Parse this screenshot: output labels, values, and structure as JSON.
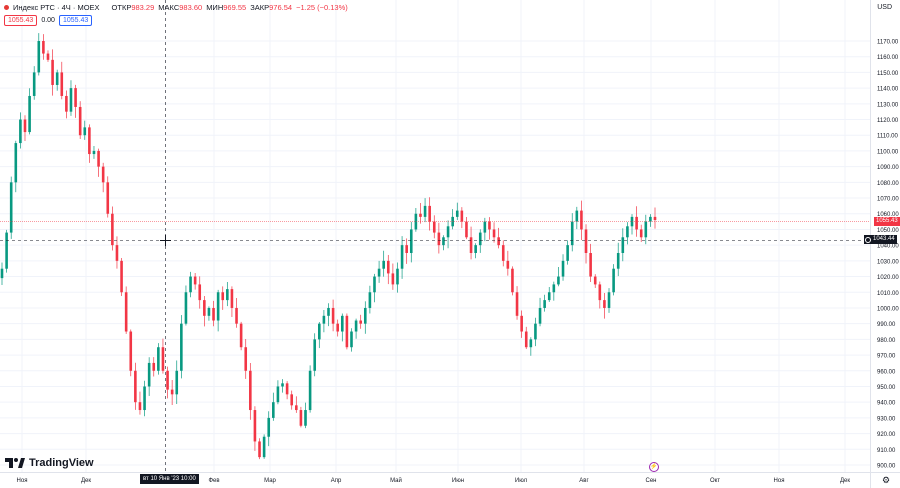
{
  "legend": {
    "title": "Индекс РТС · 4Ч · MOEX",
    "open_label": "ОТКР",
    "open_value": "983.29",
    "high_label": "МАКС",
    "high_value": "983.60",
    "low_label": "МИН",
    "low_value": "969.55",
    "close_label": "ЗАКР",
    "close_value": "976.54",
    "change": "−1.25 (−0.13%)"
  },
  "price_boxes": {
    "left": "1055.43",
    "mid": "0.00",
    "right": "1055.43"
  },
  "currency": "USD",
  "logo_text": "TradingView",
  "crosshair": {
    "date_label": "вт 10 Янв '23 10:00",
    "price_label": "1043.44"
  },
  "last_price_label": "1055.43",
  "icons": {
    "lightning": "lightning-icon",
    "settings": "gear-icon",
    "crosshair": "crosshair-icon"
  },
  "colors": {
    "up": "#089981",
    "down": "#f23645",
    "accent": "#2962ff"
  },
  "chart_data": {
    "type": "candlestick",
    "title": "Индекс РТС · 4Ч · MOEX",
    "y_ticks": [
      900,
      910,
      920,
      930,
      940,
      950,
      960,
      970,
      980,
      990,
      1000,
      1010,
      1020,
      1030,
      1040,
      1050,
      1060,
      1070,
      1080,
      1090,
      1100,
      1110,
      1120,
      1130,
      1140,
      1150,
      1160,
      1170
    ],
    "y_tick_labels": [
      "900.00",
      "910.00",
      "920.00",
      "930.00",
      "940.00",
      "950.00",
      "960.00",
      "970.00",
      "980.00",
      "990.00",
      "1000.00",
      "1010.00",
      "1020.00",
      "1030.00",
      "1040.00",
      "1050.00",
      "1060.00",
      "1070.00",
      "1080.00",
      "1090.00",
      "1100.00",
      "1110.00",
      "1120.00",
      "1130.00",
      "1140.00",
      "1150.00",
      "1160.00",
      "1170.00"
    ],
    "ylim": [
      897,
      1185
    ],
    "x_ticks": [
      "Ноя",
      "Дек",
      "Фев",
      "Мар",
      "Апр",
      "Май",
      "Июн",
      "Июл",
      "Авг",
      "Сен",
      "Окт",
      "Ноя",
      "Дек"
    ],
    "grid": true,
    "series": [
      {
        "values": [
          1025,
          1048,
          1080,
          1105,
          1120,
          1112,
          1135,
          1150,
          1170,
          1162,
          1158,
          1142,
          1150,
          1135,
          1125,
          1140,
          1128,
          1110,
          1115,
          1098,
          1100,
          1090,
          1080,
          1060,
          1040,
          1030,
          1010,
          985,
          960,
          940,
          935,
          950,
          965,
          960,
          975,
          960,
          948,
          945,
          960,
          990,
          1010,
          1020,
          1015,
          1005,
          995,
          1000,
          992,
          1010,
          1005,
          1012,
          1000,
          990,
          975,
          960,
          935,
          915,
          905,
          918,
          930,
          940,
          950,
          952,
          945,
          938,
          935,
          925,
          935,
          960,
          980,
          990,
          995,
          1000,
          990,
          985,
          995,
          975,
          985,
          992,
          990,
          1000,
          1010,
          1020,
          1025,
          1030,
          1022,
          1015,
          1025,
          1040,
          1035,
          1050,
          1060,
          1058,
          1065,
          1055,
          1048,
          1040,
          1045,
          1052,
          1058,
          1062,
          1055,
          1045,
          1035,
          1040,
          1048,
          1055,
          1050,
          1045,
          1040,
          1030,
          1025,
          1010,
          995,
          985,
          975,
          980,
          990,
          1000,
          1005,
          1010,
          1015,
          1020,
          1030,
          1040,
          1055,
          1062,
          1050,
          1035,
          1020,
          1015,
          1005,
          1000,
          1010,
          1025,
          1035,
          1045,
          1052,
          1058,
          1050,
          1045,
          1055,
          1058,
          1056
        ]
      }
    ]
  }
}
